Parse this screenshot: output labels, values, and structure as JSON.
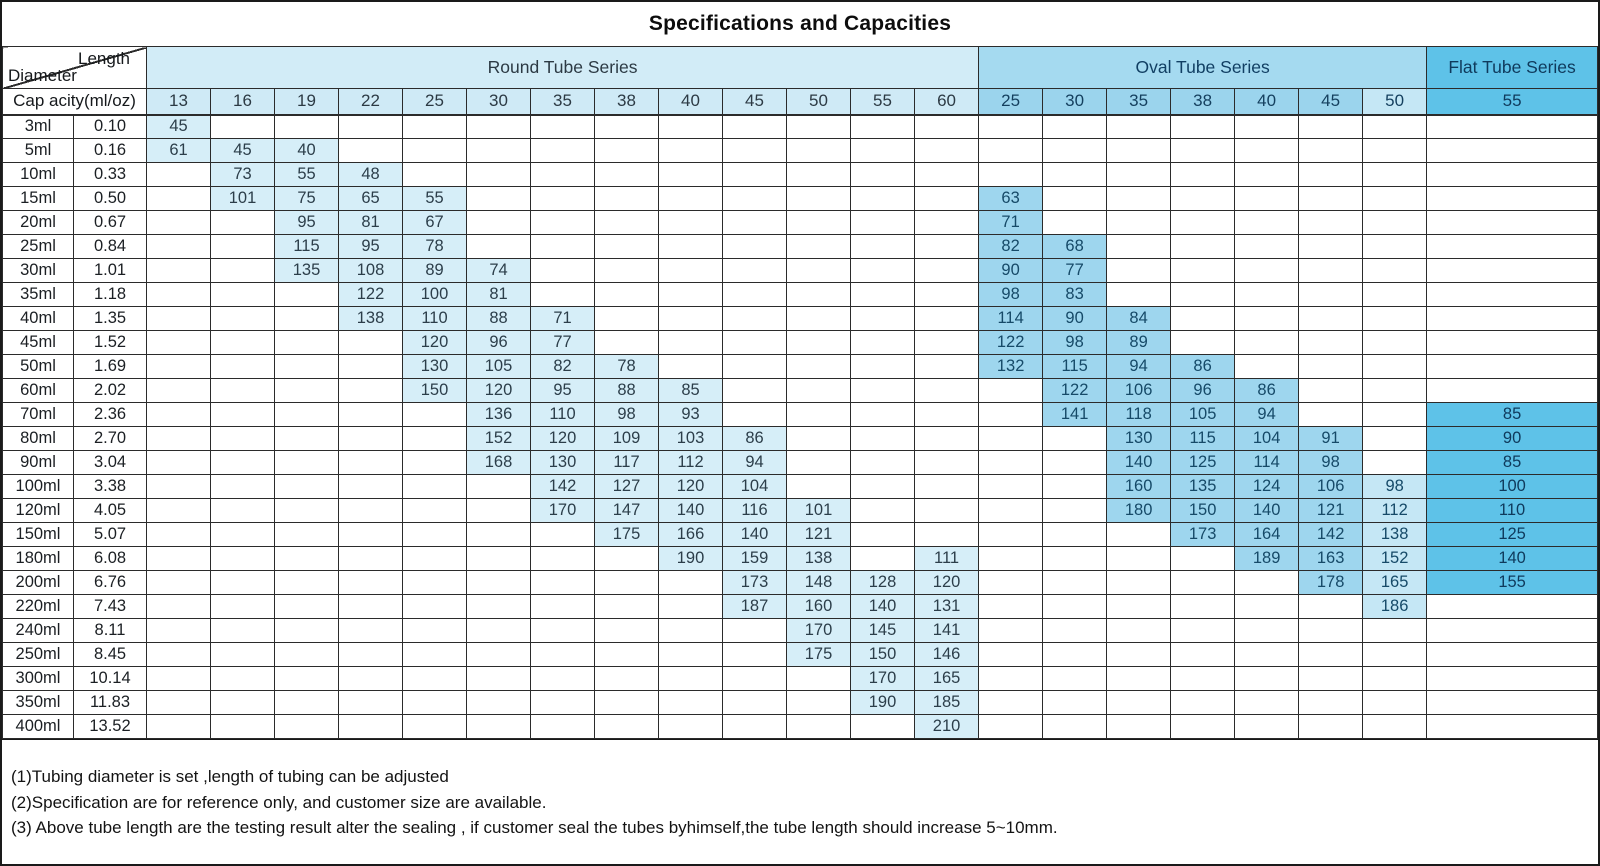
{
  "title": "Specifications and Capacities",
  "colors": {
    "round_fill": "#d6eef8",
    "oval_fill": "#9ed6ee",
    "oval_light_fill": "#c5e7f5",
    "flat_fill": "#5ec2e8",
    "grid_border": "#2b2b2b"
  },
  "table": {
    "corner": {
      "top": "Length",
      "bottom": "Diameter"
    },
    "capacity_header": "Cap acity(ml/oz)",
    "series": [
      {
        "key": "round",
        "label": "Round Tube Series",
        "diameters": [
          13,
          16,
          19,
          22,
          25,
          30,
          35,
          38,
          40,
          45,
          50,
          55,
          60
        ]
      },
      {
        "key": "oval",
        "label": "Oval Tube Series",
        "diameters": [
          25,
          30,
          35,
          38,
          40,
          45,
          50
        ]
      },
      {
        "key": "flat",
        "label": "Flat Tube Series",
        "diameters": [
          55
        ]
      }
    ],
    "rows": [
      {
        "capacity": "3ml",
        "oz": "0.10",
        "values": [
          45,
          null,
          null,
          null,
          null,
          null,
          null,
          null,
          null,
          null,
          null,
          null,
          null,
          null,
          null,
          null,
          null,
          null,
          null,
          null,
          null
        ]
      },
      {
        "capacity": "5ml",
        "oz": "0.16",
        "values": [
          61,
          45,
          40,
          null,
          null,
          null,
          null,
          null,
          null,
          null,
          null,
          null,
          null,
          null,
          null,
          null,
          null,
          null,
          null,
          null,
          null
        ]
      },
      {
        "capacity": "10ml",
        "oz": "0.33",
        "values": [
          null,
          73,
          55,
          48,
          null,
          null,
          null,
          null,
          null,
          null,
          null,
          null,
          null,
          null,
          null,
          null,
          null,
          null,
          null,
          null,
          null
        ]
      },
      {
        "capacity": "15ml",
        "oz": "0.50",
        "values": [
          null,
          101,
          75,
          65,
          55,
          null,
          null,
          null,
          null,
          null,
          null,
          null,
          null,
          63,
          null,
          null,
          null,
          null,
          null,
          null,
          null
        ]
      },
      {
        "capacity": "20ml",
        "oz": "0.67",
        "values": [
          null,
          null,
          95,
          81,
          67,
          null,
          null,
          null,
          null,
          null,
          null,
          null,
          null,
          71,
          null,
          null,
          null,
          null,
          null,
          null,
          null
        ]
      },
      {
        "capacity": "25ml",
        "oz": "0.84",
        "values": [
          null,
          null,
          115,
          95,
          78,
          null,
          null,
          null,
          null,
          null,
          null,
          null,
          null,
          82,
          68,
          null,
          null,
          null,
          null,
          null,
          null
        ]
      },
      {
        "capacity": "30ml",
        "oz": "1.01",
        "values": [
          null,
          null,
          135,
          108,
          89,
          74,
          null,
          null,
          null,
          null,
          null,
          null,
          null,
          90,
          77,
          null,
          null,
          null,
          null,
          null,
          null
        ]
      },
      {
        "capacity": "35ml",
        "oz": "1.18",
        "values": [
          null,
          null,
          null,
          122,
          100,
          81,
          null,
          null,
          null,
          null,
          null,
          null,
          null,
          98,
          83,
          null,
          null,
          null,
          null,
          null,
          null
        ]
      },
      {
        "capacity": "40ml",
        "oz": "1.35",
        "values": [
          null,
          null,
          null,
          138,
          110,
          88,
          71,
          null,
          null,
          null,
          null,
          null,
          null,
          114,
          90,
          84,
          null,
          null,
          null,
          null,
          null
        ]
      },
      {
        "capacity": "45ml",
        "oz": "1.52",
        "values": [
          null,
          null,
          null,
          null,
          120,
          96,
          77,
          null,
          null,
          null,
          null,
          null,
          null,
          122,
          98,
          89,
          null,
          null,
          null,
          null,
          null
        ]
      },
      {
        "capacity": "50ml",
        "oz": "1.69",
        "values": [
          null,
          null,
          null,
          null,
          130,
          105,
          82,
          78,
          null,
          null,
          null,
          null,
          null,
          132,
          115,
          94,
          86,
          null,
          null,
          null,
          null
        ]
      },
      {
        "capacity": "60ml",
        "oz": "2.02",
        "values": [
          null,
          null,
          null,
          null,
          150,
          120,
          95,
          88,
          85,
          null,
          null,
          null,
          null,
          null,
          122,
          106,
          96,
          86,
          null,
          null,
          null
        ]
      },
      {
        "capacity": "70ml",
        "oz": "2.36",
        "values": [
          null,
          null,
          null,
          null,
          null,
          136,
          110,
          98,
          93,
          null,
          null,
          null,
          null,
          null,
          141,
          118,
          105,
          94,
          null,
          null,
          85
        ]
      },
      {
        "capacity": "80ml",
        "oz": "2.70",
        "values": [
          null,
          null,
          null,
          null,
          null,
          152,
          120,
          109,
          103,
          86,
          null,
          null,
          null,
          null,
          null,
          130,
          115,
          104,
          91,
          null,
          90
        ]
      },
      {
        "capacity": "90ml",
        "oz": "3.04",
        "values": [
          null,
          null,
          null,
          null,
          null,
          168,
          130,
          117,
          112,
          94,
          null,
          null,
          null,
          null,
          null,
          140,
          125,
          114,
          98,
          null,
          85
        ]
      },
      {
        "capacity": "100ml",
        "oz": "3.38",
        "values": [
          null,
          null,
          null,
          null,
          null,
          null,
          142,
          127,
          120,
          104,
          null,
          null,
          null,
          null,
          null,
          160,
          135,
          124,
          106,
          98,
          100
        ]
      },
      {
        "capacity": "120ml",
        "oz": "4.05",
        "values": [
          null,
          null,
          null,
          null,
          null,
          null,
          170,
          147,
          140,
          116,
          101,
          null,
          null,
          null,
          null,
          180,
          150,
          140,
          121,
          112,
          110
        ]
      },
      {
        "capacity": "150ml",
        "oz": "5.07",
        "values": [
          null,
          null,
          null,
          null,
          null,
          null,
          null,
          175,
          166,
          140,
          121,
          null,
          null,
          null,
          null,
          null,
          173,
          164,
          142,
          138,
          125
        ]
      },
      {
        "capacity": "180ml",
        "oz": "6.08",
        "values": [
          null,
          null,
          null,
          null,
          null,
          null,
          null,
          null,
          190,
          159,
          138,
          null,
          111,
          null,
          null,
          null,
          null,
          189,
          163,
          152,
          140
        ]
      },
      {
        "capacity": "200ml",
        "oz": "6.76",
        "values": [
          null,
          null,
          null,
          null,
          null,
          null,
          null,
          null,
          null,
          173,
          148,
          128,
          120,
          null,
          null,
          null,
          null,
          null,
          178,
          165,
          155
        ]
      },
      {
        "capacity": "220ml",
        "oz": "7.43",
        "values": [
          null,
          null,
          null,
          null,
          null,
          null,
          null,
          null,
          null,
          187,
          160,
          140,
          131,
          null,
          null,
          null,
          null,
          null,
          null,
          186,
          null
        ]
      },
      {
        "capacity": "240ml",
        "oz": "8.11",
        "values": [
          null,
          null,
          null,
          null,
          null,
          null,
          null,
          null,
          null,
          null,
          170,
          145,
          141,
          null,
          null,
          null,
          null,
          null,
          null,
          null,
          null
        ]
      },
      {
        "capacity": "250ml",
        "oz": "8.45",
        "values": [
          null,
          null,
          null,
          null,
          null,
          null,
          null,
          null,
          null,
          null,
          175,
          150,
          146,
          null,
          null,
          null,
          null,
          null,
          null,
          null,
          null
        ]
      },
      {
        "capacity": "300ml",
        "oz": "10.14",
        "values": [
          null,
          null,
          null,
          null,
          null,
          null,
          null,
          null,
          null,
          null,
          null,
          170,
          165,
          null,
          null,
          null,
          null,
          null,
          null,
          null,
          null
        ]
      },
      {
        "capacity": "350ml",
        "oz": "11.83",
        "values": [
          null,
          null,
          null,
          null,
          null,
          null,
          null,
          null,
          null,
          null,
          null,
          190,
          185,
          null,
          null,
          null,
          null,
          null,
          null,
          null,
          null
        ]
      },
      {
        "capacity": "400ml",
        "oz": "13.52",
        "values": [
          null,
          null,
          null,
          null,
          null,
          null,
          null,
          null,
          null,
          null,
          null,
          null,
          210,
          null,
          null,
          null,
          null,
          null,
          null,
          null,
          null
        ]
      }
    ]
  },
  "notes": [
    "(1)Tubing diameter is set ,length of tubing can be adjusted",
    "(2)Specification are for reference only, and customer size are available.",
    "(3) Above tube length are the testing result alter the sealing , if customer seal the tubes byhimself,the tube length should increase 5~10mm."
  ]
}
